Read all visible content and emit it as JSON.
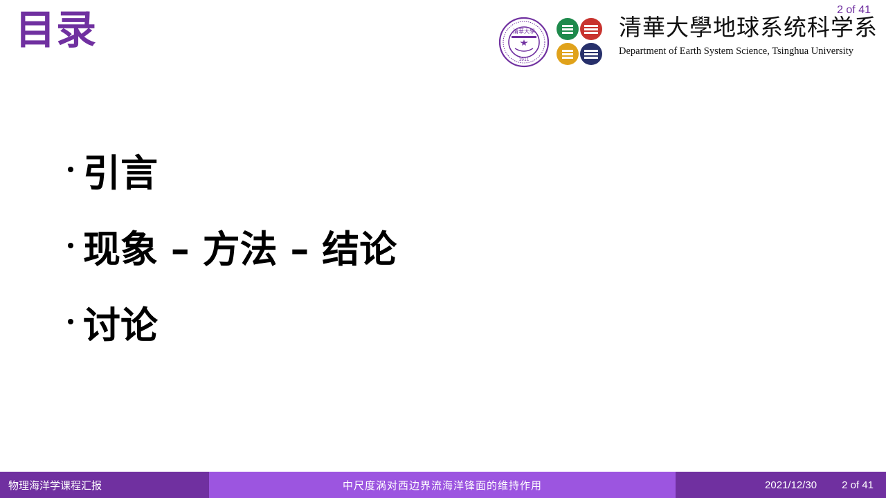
{
  "page_number_top": "2 of 41",
  "title": "目录",
  "header": {
    "university_cn": "清華大學",
    "seal_text": "清華大學 1911",
    "department_cn": "地球系统科学系",
    "department_en": "Department of Earth System Science, Tsinghua University"
  },
  "outline": [
    {
      "label": "引言"
    },
    {
      "label": "现象 – 方法 – 结论"
    },
    {
      "label": "讨论"
    }
  ],
  "footer": {
    "course": "物理海洋学课程汇报",
    "topic": "中尺度涡对西边界流海洋锋面的维持作用",
    "date": "2021/12/30",
    "page": "2 of 41"
  },
  "colors": {
    "accent": "#7030A0",
    "footer_center": "#9C55E0",
    "logo_green": "#1E8A4C",
    "logo_red": "#C8332E",
    "logo_yellow": "#E0A21B",
    "logo_navy": "#27306B"
  }
}
